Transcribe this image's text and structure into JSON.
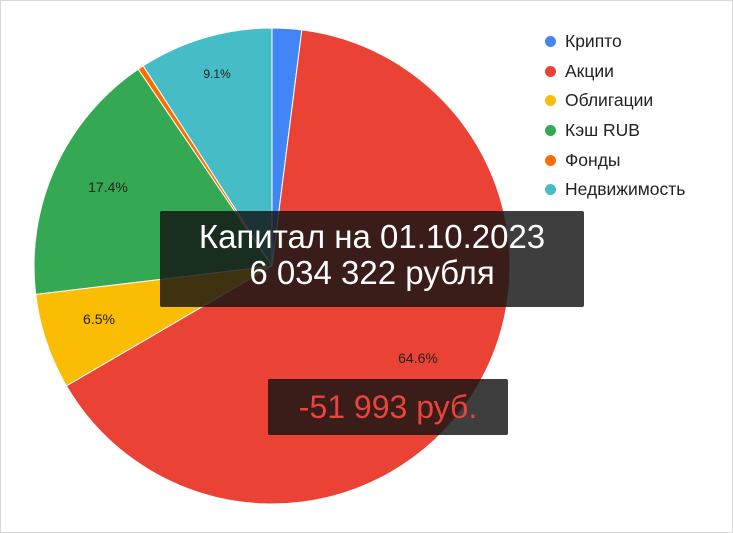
{
  "chart_data": {
    "type": "pie",
    "start_angle_deg": 0,
    "direction": "clockwise",
    "slices": [
      {
        "name": "Крипто",
        "value": 2.0,
        "color": "#4285f4",
        "label": ""
      },
      {
        "name": "Акции",
        "value": 64.6,
        "color": "#ea4335",
        "label": "64.6%"
      },
      {
        "name": "Облигации",
        "value": 6.5,
        "color": "#fbbc04",
        "label": "6.5%"
      },
      {
        "name": "Кэш RUB",
        "value": 17.4,
        "color": "#34a853",
        "label": "17.4%"
      },
      {
        "name": "Фонды",
        "value": 0.4,
        "color": "#ff6d01",
        "label": ""
      },
      {
        "name": "Недвижимость",
        "value": 9.1,
        "color": "#46bdc6",
        "label": "9.1%"
      }
    ],
    "legend_position": "top-right"
  },
  "overlay": {
    "title_line1": "Капитал на 01.10.2023",
    "title_line2": "6 034 322 рубля",
    "change": "-51 993 руб."
  }
}
